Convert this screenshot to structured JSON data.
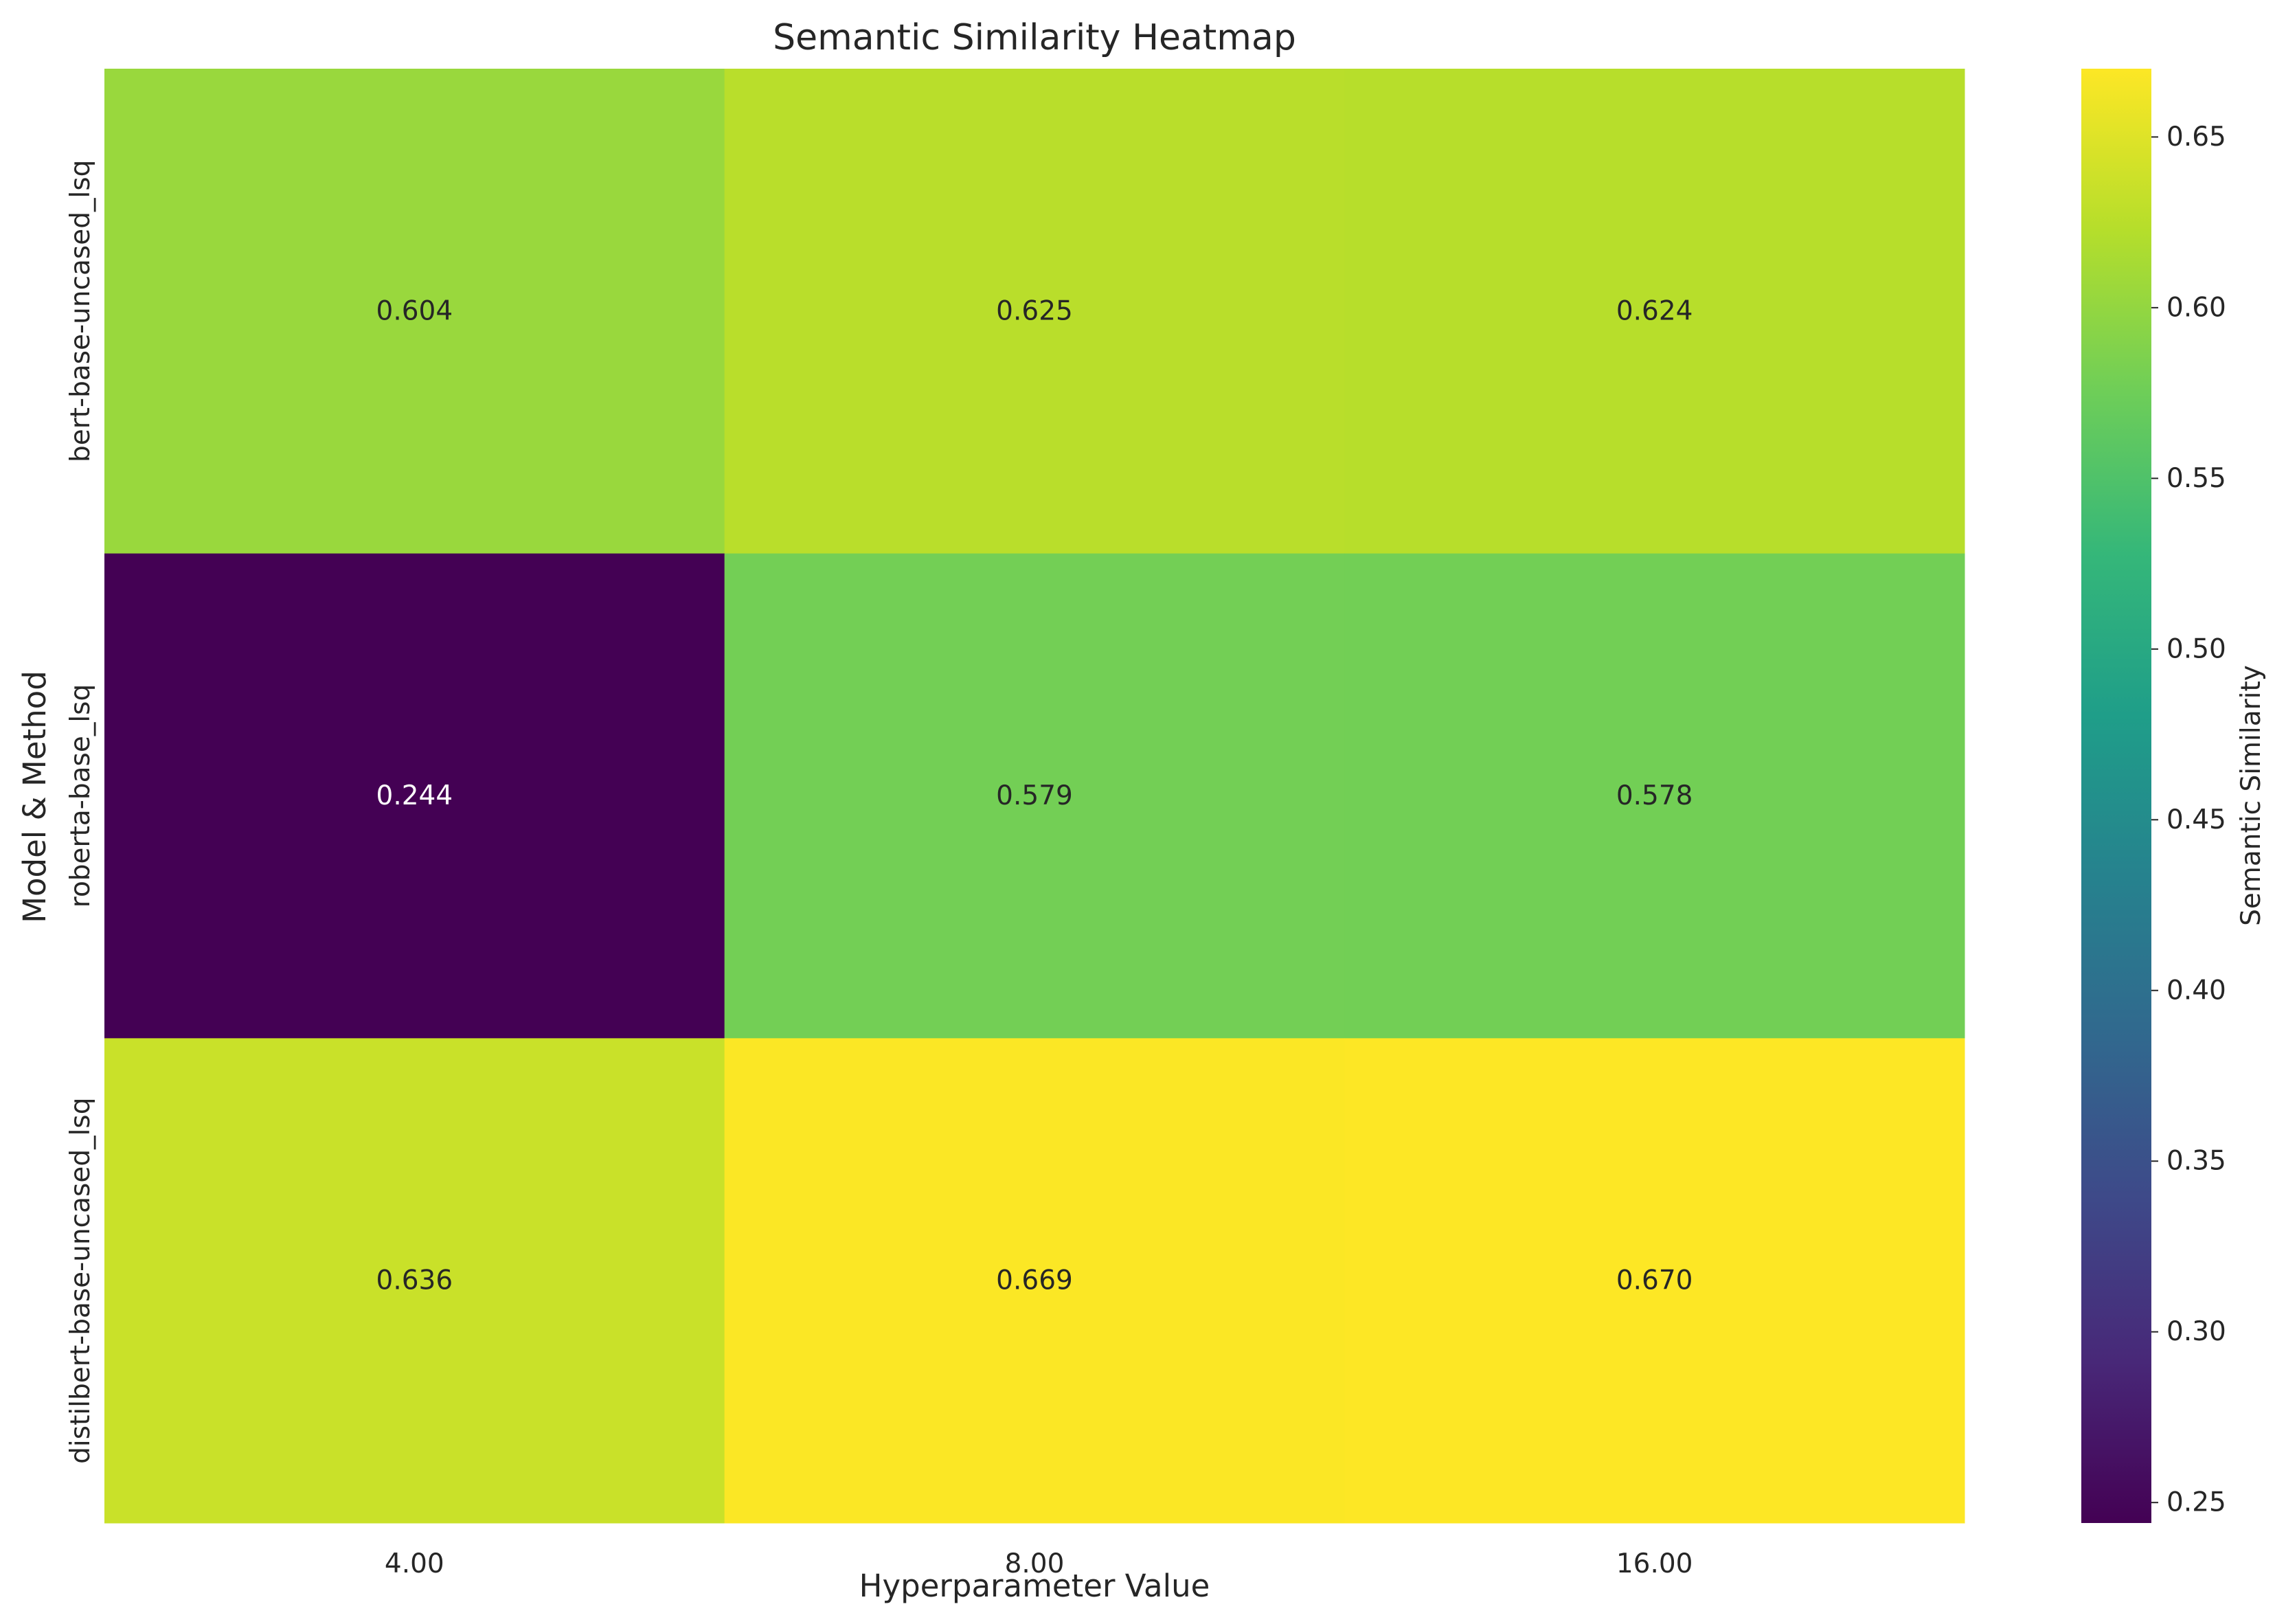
{
  "chart_data": {
    "type": "heatmap",
    "title": "Semantic Similarity Heatmap",
    "xlabel": "Hyperparameter Value",
    "ylabel": "Model & Method",
    "x_categories": [
      "4.00",
      "8.00",
      "16.00"
    ],
    "y_categories": [
      "bert-base-uncased_lsq",
      "roberta-base_lsq",
      "distilbert-base-uncased_lsq"
    ],
    "values": [
      [
        0.604,
        0.625,
        0.624
      ],
      [
        0.244,
        0.579,
        0.578
      ],
      [
        0.636,
        0.669,
        0.67
      ]
    ],
    "value_labels": [
      [
        "0.604",
        "0.625",
        "0.624"
      ],
      [
        "0.244",
        "0.579",
        "0.578"
      ],
      [
        "0.636",
        "0.669",
        "0.670"
      ]
    ],
    "colorbar": {
      "label": "Semantic Similarity",
      "range": [
        0.244,
        0.67
      ],
      "ticks": [
        0.25,
        0.3,
        0.35,
        0.4,
        0.45,
        0.5,
        0.55,
        0.6,
        0.65
      ],
      "tick_labels": [
        "0.25",
        "0.30",
        "0.35",
        "0.40",
        "0.45",
        "0.50",
        "0.55",
        "0.60",
        "0.65"
      ],
      "colormap": "viridis"
    },
    "grid": false
  }
}
